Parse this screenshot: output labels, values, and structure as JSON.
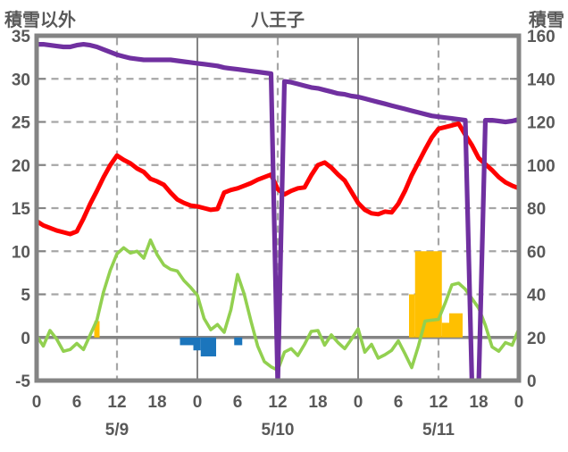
{
  "chart_data": {
    "type": "line+bar",
    "title": "八王子",
    "left_axis": {
      "label": "積雪以外",
      "min": -5,
      "max": 35,
      "tick_step": 5,
      "ticks": [
        35,
        30,
        25,
        20,
        15,
        10,
        5,
        0,
        -5
      ]
    },
    "right_axis": {
      "label": "積雪",
      "min": 0,
      "max": 160,
      "tick_step": 20,
      "ticks": [
        160,
        140,
        120,
        100,
        80,
        60,
        40,
        20,
        0
      ]
    },
    "x_axis": {
      "total_hours": 72,
      "tick_hours": [
        0,
        6,
        12,
        18,
        24,
        30,
        36,
        42,
        48,
        54,
        60,
        66,
        72
      ],
      "tick_labels": [
        "0",
        "6",
        "12",
        "18",
        "0",
        "6",
        "12",
        "18",
        "0",
        "6",
        "12",
        "18",
        "0"
      ],
      "date_labels": [
        {
          "label": "5/9",
          "hour": 12
        },
        {
          "label": "5/10",
          "hour": 36
        },
        {
          "label": "5/11",
          "hour": 60
        }
      ]
    },
    "grid": {
      "h_dashed_values": [
        30,
        25,
        20,
        15,
        10,
        5
      ],
      "v_dashed_hours": [
        12,
        36,
        60
      ],
      "v_solid_hours": [
        24,
        48
      ],
      "zero_line_value": 0,
      "right_stub_values": [
        140,
        120,
        100,
        80,
        60,
        40,
        20
      ]
    },
    "series": [
      {
        "id": "green",
        "type": "line",
        "axis": "left",
        "color": "#92D050",
        "width": 3.6,
        "start_hour": 0,
        "step_hours": 1,
        "values": [
          0.2,
          -1.0,
          0.8,
          -0.2,
          -1.6,
          -1.4,
          -0.7,
          -1.4,
          0.3,
          2.0,
          5.3,
          7.8,
          9.7,
          10.4,
          9.8,
          10.0,
          9.2,
          11.3,
          9.6,
          8.4,
          7.9,
          7.7,
          6.6,
          5.8,
          4.9,
          2.2,
          0.9,
          1.5,
          0.6,
          3.2,
          7.3,
          5.0,
          1.9,
          -1.0,
          -2.8,
          -3.4,
          -3.8,
          -1.7,
          -1.3,
          -2.1,
          -0.8,
          0.7,
          0.8,
          -0.9,
          0.3,
          -0.6,
          -1.3,
          -0.2,
          1.0,
          -1.7,
          -0.8,
          -2.4,
          -2.0,
          -1.5,
          -0.4,
          -1.9,
          -3.5,
          -1.0,
          1.9,
          2.0,
          2.1,
          4.0,
          6.1,
          6.3,
          5.6,
          4.5,
          3.4,
          1.4,
          -1.1,
          -1.6,
          -0.6,
          -0.9,
          1.0
        ]
      },
      {
        "id": "red",
        "type": "line",
        "axis": "left",
        "color": "#FF0000",
        "width": 5,
        "start_hour": 0,
        "step_hours": 1,
        "values": [
          13.5,
          13.0,
          12.7,
          12.4,
          12.2,
          12.0,
          12.3,
          13.8,
          15.5,
          17.0,
          18.6,
          20.0,
          21.1,
          20.6,
          20.2,
          19.6,
          19.2,
          18.4,
          18.1,
          17.7,
          16.8,
          16.0,
          15.6,
          15.3,
          15.2,
          15.0,
          14.8,
          14.9,
          16.8,
          17.1,
          17.3,
          17.6,
          17.9,
          18.3,
          18.6,
          18.9,
          17.2,
          16.6,
          17.0,
          17.3,
          17.4,
          18.8,
          20.0,
          20.3,
          19.7,
          18.9,
          18.2,
          16.9,
          15.6,
          14.8,
          14.4,
          14.3,
          14.6,
          14.5,
          15.5,
          17.0,
          18.8,
          20.3,
          21.8,
          23.2,
          24.2,
          24.4,
          24.6,
          24.8,
          23.5,
          22.3,
          20.8,
          20.1,
          19.4,
          18.6,
          18.0,
          17.6,
          17.3
        ]
      },
      {
        "id": "purple",
        "type": "line",
        "axis": "left",
        "color": "#7030A0",
        "width": 5.2,
        "start_hour": 0,
        "step_hours": 1,
        "values": [
          34.0,
          34.0,
          33.9,
          33.8,
          33.7,
          33.7,
          33.9,
          34.0,
          33.9,
          33.7,
          33.4,
          33.1,
          32.8,
          32.6,
          32.4,
          32.3,
          32.2,
          32.2,
          32.2,
          32.2,
          32.2,
          32.1,
          32.0,
          31.9,
          31.8,
          31.7,
          31.6,
          31.5,
          31.3,
          31.2,
          31.1,
          31.0,
          30.9,
          30.8,
          30.7,
          30.6,
          -5.5,
          29.7,
          29.6,
          29.4,
          29.2,
          29.0,
          28.9,
          28.7,
          28.5,
          28.3,
          28.2,
          28.0,
          27.9,
          27.7,
          27.5,
          27.3,
          27.1,
          26.9,
          26.7,
          26.5,
          26.3,
          26.1,
          25.9,
          25.7,
          25.6,
          25.5,
          25.4,
          25.3,
          25.2,
          -5.5,
          -5.5,
          25.2,
          25.2,
          25.1,
          25.0,
          25.1,
          25.3
        ]
      }
    ],
    "bar_segments": [
      {
        "id": "yellow",
        "color": "#FFC000",
        "segments": [
          {
            "start": 8.6,
            "end": 9.4,
            "value": 1.9
          },
          {
            "start": 55.6,
            "end": 56.5,
            "value": 5.0
          },
          {
            "start": 56.5,
            "end": 60.5,
            "value": 10.0
          },
          {
            "start": 60.5,
            "end": 61.6,
            "value": 1.7
          },
          {
            "start": 61.6,
            "end": 63.6,
            "value": 2.8
          }
        ]
      },
      {
        "id": "blue",
        "color": "#1B75BC",
        "segments": [
          {
            "start": 21.4,
            "end": 23.4,
            "value": -0.9
          },
          {
            "start": 23.4,
            "end": 24.5,
            "value": -1.5
          },
          {
            "start": 24.5,
            "end": 26.8,
            "value": -2.2
          },
          {
            "start": 29.5,
            "end": 30.7,
            "value": -0.9
          }
        ]
      }
    ],
    "colors": {
      "border": "#848484",
      "grid": "#A6A6A6",
      "solid_grid": "#848484",
      "text": "#595959"
    }
  }
}
